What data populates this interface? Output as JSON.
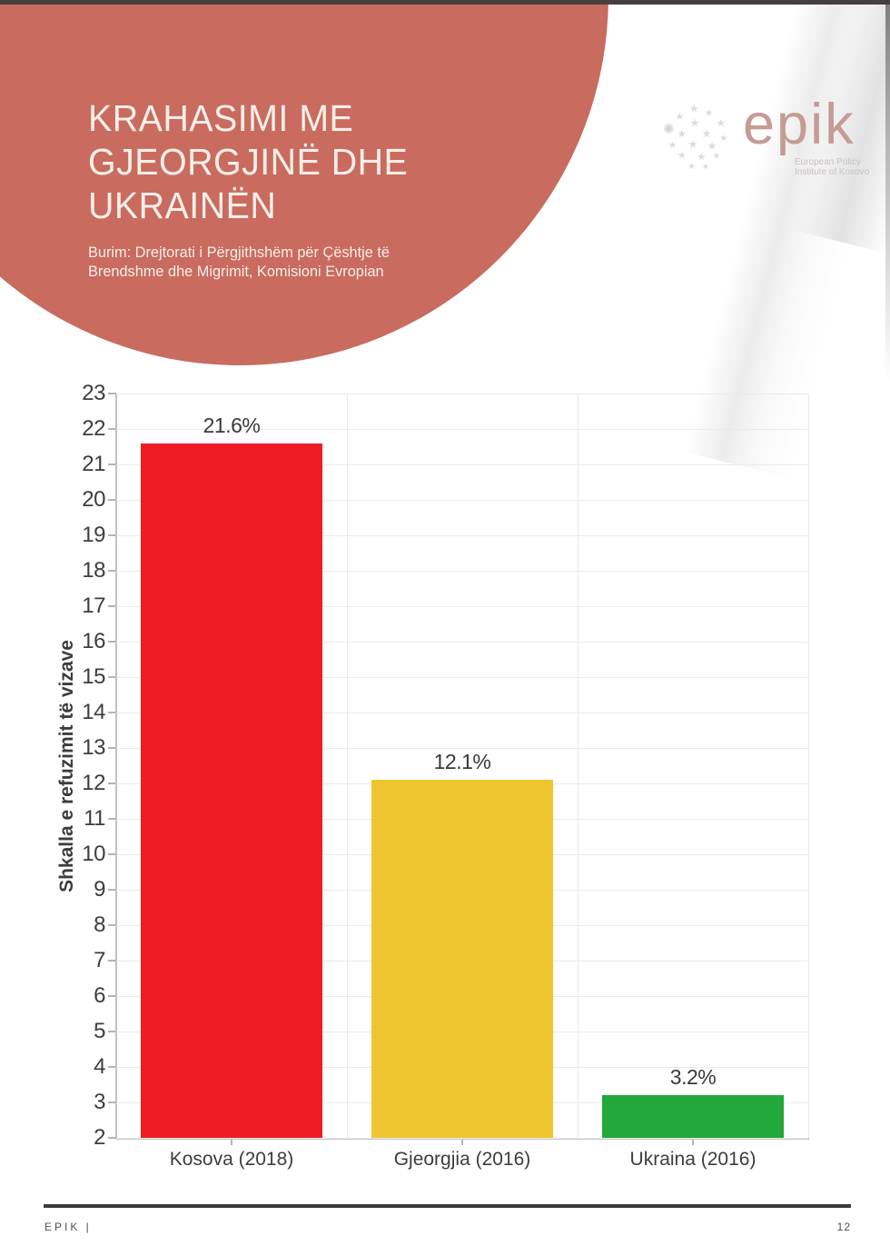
{
  "header": {
    "title_lines": [
      "KRAHASIMI ME",
      "GJEORGJINË DHE",
      "UKRAINËN"
    ],
    "source_lines": [
      "Burim: Drejtorati i Përgjithshëm për Çështje të",
      "Brendshme dhe Migrimit, Komisioni Evropian"
    ],
    "circle_color": "#c96b5e",
    "text_color": "#f7efe9",
    "topbar_color": "#45403f"
  },
  "logo": {
    "wordmark": "epik",
    "tagline_lines": [
      "European Policy",
      "Institute of Kosovo"
    ],
    "wordmark_color": "#c59b94",
    "tagline_color": "#c8c1bf",
    "globe_color": "#dcdcdc"
  },
  "chart_data": {
    "type": "bar",
    "title": "",
    "xlabel": "",
    "ylabel": "Shkalla e refuzimit të vizave",
    "categories": [
      "Kosova (2018)",
      "Gjeorgjia (2016)",
      "Ukraina (2016)"
    ],
    "values": [
      21.6,
      12.1,
      3.2
    ],
    "value_labels": [
      "21.6%",
      "12.1%",
      "3.2%"
    ],
    "bar_colors": [
      "#ee1c25",
      "#efc52f",
      "#22a73b"
    ],
    "ylim": [
      2,
      23
    ],
    "ytick_step": 1,
    "grid": true,
    "legend": "none",
    "axis_color": "#c2c2c2",
    "gridline_color": "#eaeaea",
    "label_color": "#3d3d3d"
  },
  "footer": {
    "left_text": "EPIK |",
    "page_number": "12"
  }
}
